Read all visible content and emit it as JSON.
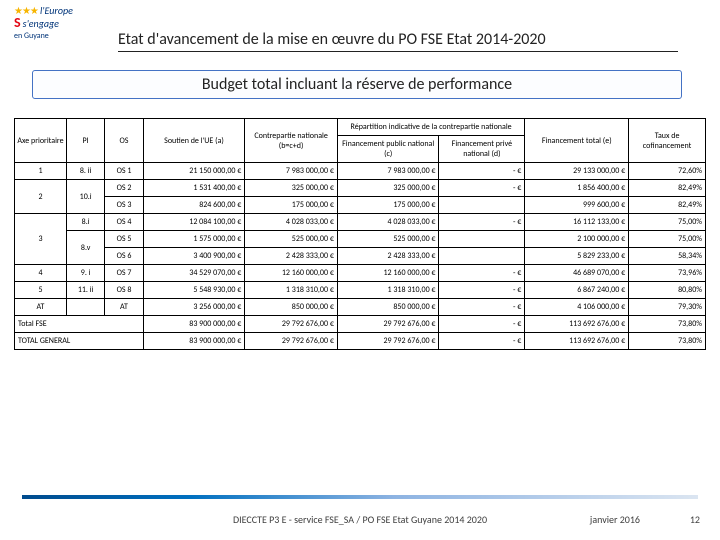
{
  "title": "Etat d'avancement de la mise en œuvre du PO FSE Etat 2014-2020",
  "subtitle": "Budget total incluant la réserve de performance",
  "logo": {
    "top": "l'Europe",
    "mid": "s'engage",
    "sub": "en Guyane"
  },
  "columns": {
    "axe": "Axe prioritaire",
    "pi": "PI",
    "os": "OS",
    "soutien": "Soutien de l'UE\n(a)",
    "contre": "Contrepartie nationale\n(b=c+d)",
    "repart": "Répartition indicative de la contrepartie nationale",
    "finpub": "Financement public national (c)",
    "finpriv": "Financement privé national (d)",
    "fintot": "Financement total\n(e)",
    "taux": "Taux de cofinancement"
  },
  "rows": [
    {
      "axe": "1",
      "pi": "8. ii",
      "os": "OS 1",
      "a": "21 150 000,00 €",
      "b": "7 983 000,00 €",
      "c": "7 983 000,00 €",
      "d": "-  €",
      "e": "29 133 000,00 €",
      "t": "72,60%",
      "axe_rs": 1,
      "pi_rs": 1
    },
    {
      "axe": "2",
      "pi": "10.i",
      "os": "OS 2",
      "a": "1 531 400,00 €",
      "b": "325 000,00 €",
      "c": "325 000,00 €",
      "d": "-  €",
      "e": "1 856 400,00 €",
      "t": "82,49%",
      "axe_rs": 2,
      "pi_rs": 2
    },
    {
      "os": "OS 3",
      "a": "824 600,00 €",
      "b": "175 000,00 €",
      "c": "175 000,00 €",
      "d": "",
      "e": "999 600,00 €",
      "t": "82,49%"
    },
    {
      "axe": "3",
      "pi": "8.i",
      "os": "OS 4",
      "a": "12 084 100,00 €",
      "b": "4 028 033,00 €",
      "c": "4 028 033,00 €",
      "d": "-  €",
      "e": "16 112 133,00 €",
      "t": "75,00%",
      "axe_rs": 3,
      "pi_rs": 1
    },
    {
      "pi": "8.v",
      "os": "OS 5",
      "a": "1 575 000,00 €",
      "b": "525 000,00 €",
      "c": "525 000,00 €",
      "d": "",
      "e": "2 100 000,00 €",
      "t": "75,00%",
      "pi_rs": 2
    },
    {
      "os": "OS 6",
      "a": "3 400 900,00 €",
      "b": "2 428 333,00 €",
      "c": "2 428 333,00 €",
      "d": "",
      "e": "5 829 233,00 €",
      "t": "58,34%"
    },
    {
      "axe": "4",
      "pi": "9. i",
      "os": "OS 7",
      "a": "34 529 070,00 €",
      "b": "12 160 000,00 €",
      "c": "12 160 000,00 €",
      "d": "-  €",
      "e": "46 689 070,00 €",
      "t": "73,96%",
      "axe_rs": 1,
      "pi_rs": 1
    },
    {
      "axe": "5",
      "pi": "11. ii",
      "os": "OS 8",
      "a": "5 548 930,00 €",
      "b": "1 318 310,00 €",
      "c": "1 318 310,00 €",
      "d": "-  €",
      "e": "6 867 240,00 €",
      "t": "80,80%",
      "axe_rs": 1,
      "pi_rs": 1
    },
    {
      "axe": "AT",
      "pi": "",
      "os": "AT",
      "a": "3 256 000,00 €",
      "b": "850 000,00 €",
      "c": "850 000,00 €",
      "d": "-  €",
      "e": "4 106 000,00 €",
      "t": "79,30%",
      "axe_rs": 1,
      "pi_rs": null
    },
    {
      "axe": "Total FSE",
      "os": "",
      "a": "83 900 000,00 €",
      "b": "29 792 676,00 €",
      "c": "29 792 676,00 €",
      "d": "-  €",
      "e": "113 692 676,00 €",
      "t": "73,80%",
      "span3": true
    },
    {
      "axe": "TOTAL GENERAL",
      "os": "",
      "a": "83 900 000,00 €",
      "b": "29 792 676,00 €",
      "c": "29 792 676,00 €",
      "d": "-  €",
      "e": "113 692 676,00 €",
      "t": "73,80%",
      "span3": true
    }
  ],
  "colwidths": {
    "axe": 46,
    "pi": 34,
    "os": 34,
    "a": 90,
    "b": 82,
    "c": 90,
    "d": 76,
    "e": 92,
    "t": 68
  },
  "footer": {
    "center": "DIECCTE P3 E - service FSE_SA / PO FSE Etat Guyane 2014 2020",
    "date": "janvier 2016",
    "page": "12"
  }
}
